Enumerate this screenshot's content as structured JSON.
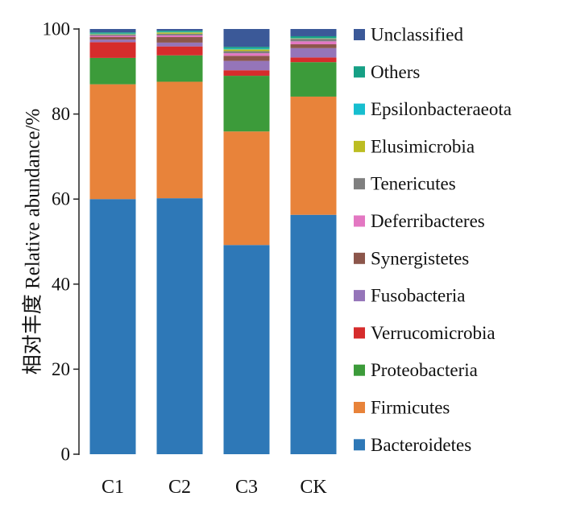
{
  "chart_data": {
    "type": "bar",
    "stacked": true,
    "title": "",
    "xlabel": "",
    "ylabel": "相对丰度 Relative abundance/%",
    "ylim": [
      0,
      100
    ],
    "yticks": [
      0,
      20,
      40,
      60,
      80,
      100
    ],
    "categories": [
      "C1",
      "C2",
      "C3",
      "CK"
    ],
    "grid": false,
    "legend_position": "right",
    "series": [
      {
        "name": "Bacteroidetes",
        "color": "#2e78b7",
        "values": [
          60.0,
          60.2,
          49.2,
          56.3
        ]
      },
      {
        "name": "Firmicutes",
        "color": "#e8833a",
        "values": [
          27.0,
          27.4,
          26.7,
          27.8
        ]
      },
      {
        "name": "Proteobacteria",
        "color": "#3c9b3a",
        "values": [
          6.2,
          6.2,
          13.1,
          8.1
        ]
      },
      {
        "name": "Verrucomicrobia",
        "color": "#d62c2c",
        "values": [
          3.7,
          2.1,
          1.3,
          1.1
        ]
      },
      {
        "name": "Fusobacteria",
        "color": "#9575b9",
        "values": [
          0.6,
          0.9,
          2.2,
          2.2
        ]
      },
      {
        "name": "Synergistetes",
        "color": "#8c564b",
        "values": [
          0.6,
          1.3,
          1.2,
          0.9
        ]
      },
      {
        "name": "Deferribacteres",
        "color": "#e377c2",
        "values": [
          0.3,
          0.4,
          0.6,
          0.7
        ]
      },
      {
        "name": "Tenericutes",
        "color": "#7f7f7f",
        "values": [
          0.3,
          0.4,
          0.5,
          0.6
        ]
      },
      {
        "name": "Elusimicrobia",
        "color": "#bcbd22",
        "values": [
          0.1,
          0.3,
          0.4,
          0.1
        ]
      },
      {
        "name": "Epsilonbacteraeota",
        "color": "#17becf",
        "values": [
          0.1,
          0.1,
          0.2,
          0.1
        ]
      },
      {
        "name": "Others",
        "color": "#16a085",
        "values": [
          0.3,
          0.3,
          0.4,
          0.4
        ]
      },
      {
        "name": "Unclassified",
        "color": "#3b5998",
        "values": [
          0.8,
          0.4,
          4.2,
          1.7
        ]
      }
    ]
  }
}
